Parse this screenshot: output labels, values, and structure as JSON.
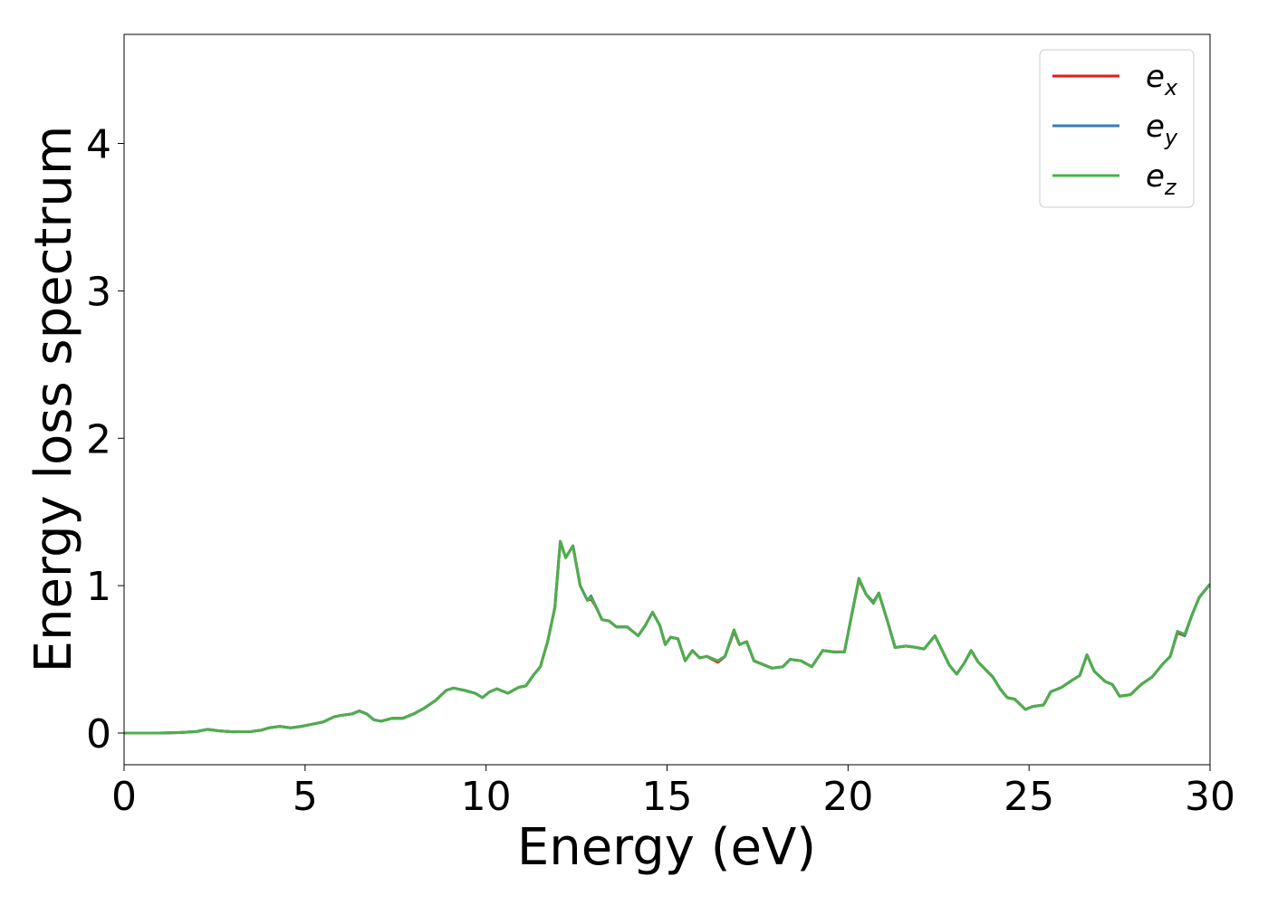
{
  "chart_data": {
    "type": "line",
    "xlabel": "Energy (eV)",
    "ylabel": "Energy loss spectrum",
    "x": [
      0,
      1,
      1.5,
      2,
      2.3,
      2.6,
      3,
      3.5,
      3.8,
      4,
      4.3,
      4.6,
      4.9,
      5.2,
      5.5,
      5.8,
      6,
      6.3,
      6.5,
      6.7,
      6.9,
      7.1,
      7.4,
      7.7,
      8,
      8.3,
      8.6,
      8.9,
      9.1,
      9.4,
      9.7,
      9.9,
      10.1,
      10.3,
      10.6,
      10.9,
      11.1,
      11.3,
      11.5,
      11.7,
      11.9,
      12.05,
      12.2,
      12.4,
      12.6,
      12.8,
      12.9,
      13.05,
      13.2,
      13.4,
      13.6,
      13.9,
      14.2,
      14.4,
      14.6,
      14.8,
      14.95,
      15.1,
      15.3,
      15.5,
      15.7,
      15.9,
      16.1,
      16.4,
      16.6,
      16.85,
      17.0,
      17.2,
      17.4,
      17.7,
      17.9,
      18.2,
      18.4,
      18.7,
      19.0,
      19.3,
      19.6,
      19.9,
      20.1,
      20.3,
      20.5,
      20.7,
      20.85,
      21.1,
      21.3,
      21.6,
      21.9,
      22.1,
      22.4,
      22.6,
      22.8,
      23.0,
      23.2,
      23.4,
      23.6,
      23.8,
      24.0,
      24.2,
      24.4,
      24.6,
      24.9,
      25.1,
      25.4,
      25.6,
      25.9,
      26.2,
      26.4,
      26.6,
      26.8,
      27.1,
      27.3,
      27.5,
      27.8,
      28.1,
      28.4,
      28.7,
      28.9,
      29.1,
      29.3,
      29.5,
      29.7,
      30
    ],
    "series": [
      {
        "name": "e_x",
        "color": "#e41a1c",
        "values": [
          0,
          0,
          0.003,
          0.01,
          0.025,
          0.015,
          0.008,
          0.01,
          0.02,
          0.035,
          0.045,
          0.035,
          0.045,
          0.06,
          0.075,
          0.11,
          0.12,
          0.13,
          0.15,
          0.13,
          0.09,
          0.08,
          0.1,
          0.1,
          0.13,
          0.17,
          0.22,
          0.29,
          0.305,
          0.29,
          0.27,
          0.24,
          0.28,
          0.3,
          0.27,
          0.31,
          0.32,
          0.39,
          0.45,
          0.62,
          0.85,
          1.3,
          1.19,
          1.27,
          1.0,
          0.9,
          0.91,
          0.85,
          0.77,
          0.76,
          0.72,
          0.72,
          0.66,
          0.73,
          0.82,
          0.73,
          0.6,
          0.65,
          0.64,
          0.49,
          0.56,
          0.51,
          0.52,
          0.48,
          0.52,
          0.69,
          0.6,
          0.62,
          0.49,
          0.46,
          0.44,
          0.45,
          0.5,
          0.49,
          0.45,
          0.56,
          0.55,
          0.55,
          0.8,
          1.04,
          0.94,
          0.88,
          0.95,
          0.75,
          0.58,
          0.59,
          0.58,
          0.57,
          0.66,
          0.56,
          0.46,
          0.4,
          0.47,
          0.56,
          0.48,
          0.43,
          0.38,
          0.3,
          0.24,
          0.23,
          0.16,
          0.18,
          0.19,
          0.28,
          0.31,
          0.36,
          0.39,
          0.53,
          0.42,
          0.35,
          0.33,
          0.25,
          0.26,
          0.33,
          0.38,
          0.47,
          0.52,
          0.68,
          0.66,
          0.8,
          0.92,
          1.01
        ]
      },
      {
        "name": "e_y",
        "color": "#377eb8",
        "values": [
          0,
          0,
          0.003,
          0.01,
          0.025,
          0.015,
          0.008,
          0.01,
          0.02,
          0.035,
          0.045,
          0.035,
          0.045,
          0.06,
          0.075,
          0.11,
          0.12,
          0.13,
          0.15,
          0.13,
          0.09,
          0.08,
          0.1,
          0.1,
          0.13,
          0.17,
          0.22,
          0.29,
          0.305,
          0.29,
          0.27,
          0.24,
          0.28,
          0.3,
          0.27,
          0.31,
          0.32,
          0.39,
          0.45,
          0.62,
          0.85,
          1.3,
          1.19,
          1.27,
          1.0,
          0.9,
          0.93,
          0.85,
          0.77,
          0.76,
          0.72,
          0.72,
          0.66,
          0.73,
          0.82,
          0.73,
          0.6,
          0.65,
          0.64,
          0.49,
          0.56,
          0.51,
          0.52,
          0.49,
          0.52,
          0.7,
          0.6,
          0.62,
          0.49,
          0.46,
          0.44,
          0.45,
          0.5,
          0.49,
          0.45,
          0.56,
          0.55,
          0.55,
          0.8,
          1.05,
          0.94,
          0.89,
          0.95,
          0.75,
          0.58,
          0.59,
          0.58,
          0.57,
          0.66,
          0.56,
          0.46,
          0.4,
          0.47,
          0.56,
          0.48,
          0.43,
          0.38,
          0.3,
          0.24,
          0.23,
          0.16,
          0.18,
          0.19,
          0.28,
          0.31,
          0.36,
          0.39,
          0.53,
          0.42,
          0.35,
          0.33,
          0.25,
          0.26,
          0.33,
          0.38,
          0.47,
          0.52,
          0.69,
          0.66,
          0.8,
          0.92,
          1.01
        ]
      },
      {
        "name": "e_z",
        "color": "#4daf4a",
        "values": [
          0,
          0,
          0.003,
          0.01,
          0.025,
          0.015,
          0.008,
          0.01,
          0.02,
          0.035,
          0.045,
          0.035,
          0.045,
          0.06,
          0.075,
          0.11,
          0.12,
          0.13,
          0.15,
          0.13,
          0.09,
          0.08,
          0.1,
          0.1,
          0.13,
          0.17,
          0.22,
          0.29,
          0.305,
          0.29,
          0.27,
          0.24,
          0.28,
          0.3,
          0.27,
          0.31,
          0.32,
          0.39,
          0.45,
          0.62,
          0.85,
          1.3,
          1.19,
          1.27,
          1.0,
          0.9,
          0.92,
          0.85,
          0.77,
          0.76,
          0.72,
          0.72,
          0.66,
          0.73,
          0.82,
          0.73,
          0.6,
          0.65,
          0.64,
          0.49,
          0.56,
          0.51,
          0.52,
          0.49,
          0.52,
          0.7,
          0.6,
          0.62,
          0.49,
          0.46,
          0.44,
          0.45,
          0.5,
          0.49,
          0.45,
          0.56,
          0.55,
          0.55,
          0.8,
          1.05,
          0.94,
          0.88,
          0.95,
          0.75,
          0.58,
          0.59,
          0.58,
          0.57,
          0.66,
          0.56,
          0.46,
          0.4,
          0.47,
          0.56,
          0.48,
          0.43,
          0.38,
          0.3,
          0.24,
          0.23,
          0.16,
          0.18,
          0.19,
          0.28,
          0.31,
          0.36,
          0.39,
          0.53,
          0.42,
          0.35,
          0.33,
          0.25,
          0.26,
          0.33,
          0.38,
          0.47,
          0.52,
          0.69,
          0.67,
          0.8,
          0.92,
          1.01
        ]
      }
    ],
    "xlim": [
      0,
      30
    ],
    "xticks": [
      0,
      5,
      10,
      15,
      20,
      25,
      30
    ],
    "ylim": [
      -0.215,
      4.74
    ],
    "yticks": [
      0,
      1,
      2,
      3,
      4
    ],
    "grid": false,
    "legend": "upper right"
  }
}
